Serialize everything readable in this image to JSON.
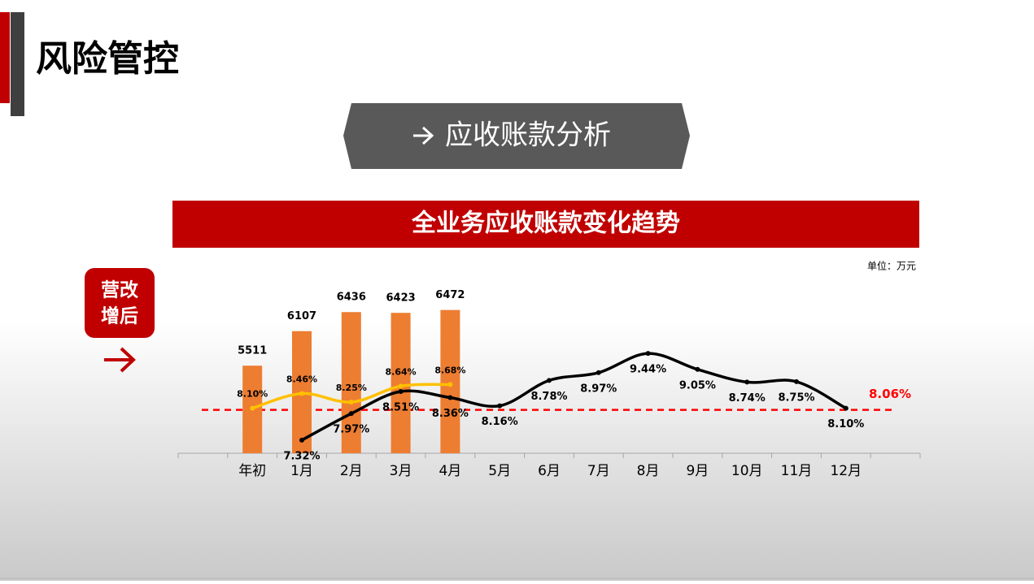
{
  "slide_title": "风险管控",
  "section_title": "应收账款分析",
  "badge": [
    "营改",
    "增后"
  ],
  "chart_data": {
    "type": "combo",
    "title": "全业务应收账款变化趋势",
    "unit": "单位：万元",
    "categories": [
      "年初",
      "1月",
      "2月",
      "3月",
      "4月",
      "5月",
      "6月",
      "7月",
      "8月",
      "9月",
      "10月",
      "11月",
      "12月"
    ],
    "ylim": [
      4000,
      7000
    ],
    "y2lim": [
      7,
      11.25
    ],
    "series": [
      {
        "type": "bar",
        "color": "#ed7d31",
        "values": [
          5511,
          6107,
          6436,
          6423,
          6472,
          null,
          null,
          null,
          null,
          null,
          null,
          null,
          null
        ]
      },
      {
        "type": "line",
        "axis": "y2",
        "color": "#ffc000",
        "label_offset": -17,
        "label_size": 11,
        "values": [
          8.1,
          8.46,
          8.25,
          8.64,
          8.68,
          null,
          null,
          null,
          null,
          null,
          null,
          null,
          null
        ],
        "value_labels": [
          "8.10%",
          "8.46%",
          "8.25%",
          "8.64%",
          "8.68%",
          null,
          null,
          null,
          null,
          null,
          null,
          null,
          null
        ]
      },
      {
        "type": "line",
        "axis": "y2",
        "color": "#000000",
        "label_offset": 20,
        "label_size": 13,
        "values": [
          null,
          7.32,
          7.97,
          8.51,
          8.36,
          8.16,
          8.78,
          8.97,
          9.44,
          9.05,
          8.74,
          8.75,
          8.1
        ],
        "value_labels": [
          null,
          "7.32%",
          "7.97%",
          "8.51%",
          "8.36%",
          "8.16%",
          "8.78%",
          "8.97%",
          "9.44%",
          "9.05%",
          "8.74%",
          "8.75%",
          "8.10%"
        ]
      }
    ],
    "reference": {
      "value": 8.06,
      "label": "8.06%",
      "color": "#ff0000",
      "axis": "y2"
    }
  }
}
